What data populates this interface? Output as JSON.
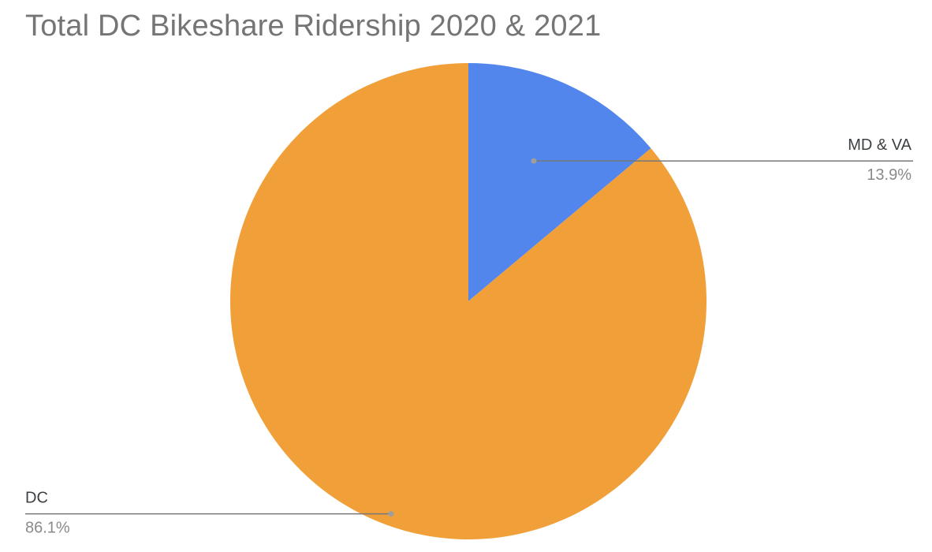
{
  "chart_data": {
    "type": "pie",
    "title": "Total DC Bikeshare Ridership 2020 & 2021",
    "slices": [
      {
        "label": "MD & VA",
        "value": 13.9,
        "value_label": "13.9%",
        "color": "#5286ec"
      },
      {
        "label": "DC",
        "value": 86.1,
        "value_label": "86.1%",
        "color": "#f1a039"
      }
    ],
    "legend": "callout-labels"
  }
}
